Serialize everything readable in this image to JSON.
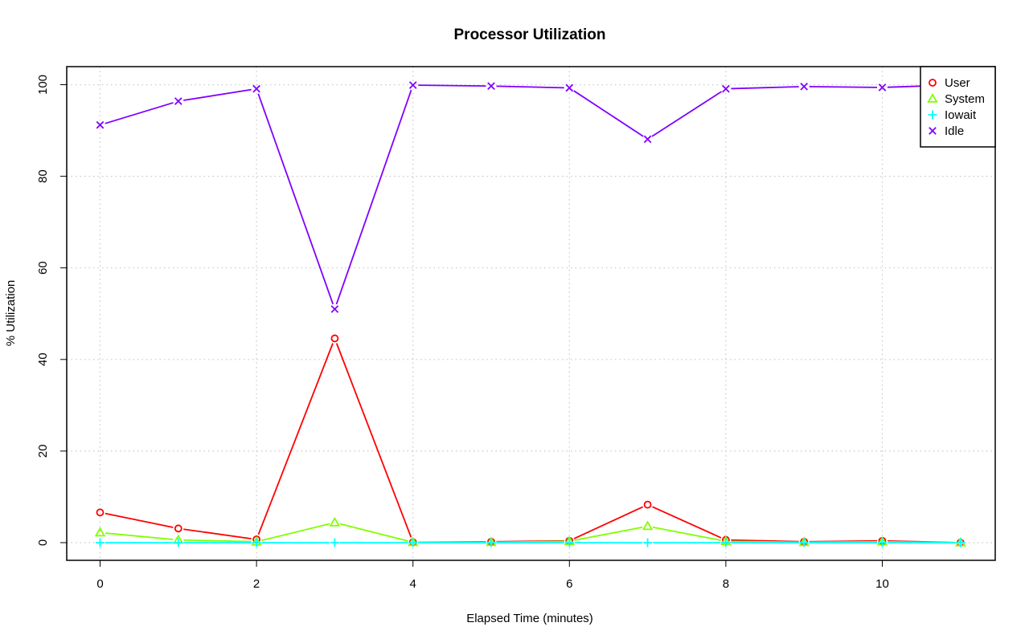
{
  "chart_data": {
    "type": "line",
    "title": "Processor Utilization",
    "xlabel": "Elapsed Time (minutes)",
    "ylabel": "% Utilization",
    "xlim": [
      0,
      11
    ],
    "ylim": [
      0,
      100
    ],
    "x_ticks": [
      0,
      2,
      4,
      6,
      8,
      10
    ],
    "y_ticks": [
      0,
      20,
      40,
      60,
      80,
      100
    ],
    "grid": true,
    "legend_position": "top-right",
    "x": [
      0,
      1,
      2,
      3,
      4,
      5,
      6,
      7,
      8,
      9,
      10,
      11
    ],
    "series": [
      {
        "name": "User",
        "color": "#ff0000",
        "marker": "circle",
        "values": [
          6.6,
          3.1,
          0.7,
          44.6,
          0.1,
          0.2,
          0.4,
          8.3,
          0.6,
          0.2,
          0.4,
          0.0
        ]
      },
      {
        "name": "System",
        "color": "#80ff00",
        "marker": "triangle",
        "values": [
          2.2,
          0.6,
          0.2,
          4.4,
          0.1,
          0.1,
          0.3,
          3.6,
          0.3,
          0.1,
          0.2,
          0.0
        ]
      },
      {
        "name": "Iowait",
        "color": "#00ffff",
        "marker": "plus",
        "values": [
          0,
          0,
          0,
          0,
          0,
          0,
          0,
          0,
          0,
          0,
          0,
          0
        ]
      },
      {
        "name": "Idle",
        "color": "#8000ff",
        "marker": "cross",
        "values": [
          91.2,
          96.4,
          99.1,
          51.0,
          99.9,
          99.7,
          99.3,
          88.1,
          99.1,
          99.6,
          99.4,
          100.0
        ]
      }
    ]
  }
}
